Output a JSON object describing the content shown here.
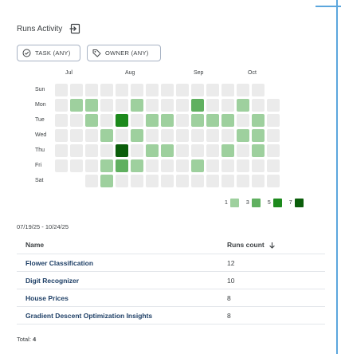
{
  "header": {
    "title": "Runs Activity",
    "expand_icon": "expand-icon"
  },
  "filters": {
    "task_label": "TASK (ANY)",
    "task_icon": "check-circle-icon",
    "owner_label": "OWNER (ANY)",
    "owner_icon": "tag-icon"
  },
  "calendar": {
    "months": [
      "Jul",
      "Aug",
      "Sep",
      "Oct"
    ],
    "days": [
      "Sun",
      "Mon",
      "Tue",
      "Wed",
      "Thu",
      "Fri",
      "Sat"
    ],
    "week_count": 15,
    "empty_color": "#ebebeb",
    "level_colors": {
      "1": "#9ed09e",
      "3": "#60b060",
      "5": "#1d8a1d",
      "7": "#0b5e0b"
    },
    "active_cells": [
      {
        "week": 1,
        "day": 1,
        "level": 1
      },
      {
        "week": 2,
        "day": 1,
        "level": 1
      },
      {
        "week": 5,
        "day": 1,
        "level": 1
      },
      {
        "week": 9,
        "day": 1,
        "level": 3
      },
      {
        "week": 12,
        "day": 1,
        "level": 1
      },
      {
        "week": 2,
        "day": 2,
        "level": 1
      },
      {
        "week": 4,
        "day": 2,
        "level": 5
      },
      {
        "week": 6,
        "day": 2,
        "level": 1
      },
      {
        "week": 7,
        "day": 2,
        "level": 1
      },
      {
        "week": 9,
        "day": 2,
        "level": 1
      },
      {
        "week": 10,
        "day": 2,
        "level": 1
      },
      {
        "week": 11,
        "day": 2,
        "level": 1
      },
      {
        "week": 13,
        "day": 2,
        "level": 1
      },
      {
        "week": 3,
        "day": 3,
        "level": 1
      },
      {
        "week": 5,
        "day": 3,
        "level": 1
      },
      {
        "week": 12,
        "day": 3,
        "level": 1
      },
      {
        "week": 13,
        "day": 3,
        "level": 1
      },
      {
        "week": 4,
        "day": 4,
        "level": 7
      },
      {
        "week": 6,
        "day": 4,
        "level": 1
      },
      {
        "week": 7,
        "day": 4,
        "level": 1
      },
      {
        "week": 11,
        "day": 4,
        "level": 1
      },
      {
        "week": 13,
        "day": 4,
        "level": 1
      },
      {
        "week": 3,
        "day": 5,
        "level": 1
      },
      {
        "week": 4,
        "day": 5,
        "level": 3
      },
      {
        "week": 5,
        "day": 5,
        "level": 1
      },
      {
        "week": 9,
        "day": 5,
        "level": 1
      },
      {
        "week": 3,
        "day": 6,
        "level": 1
      }
    ],
    "inactive_cells": [
      {
        "week": 0,
        "day": 6
      },
      {
        "week": 1,
        "day": 6
      },
      {
        "week": 14,
        "day": 0
      }
    ],
    "legend": [
      "1",
      "3",
      "5",
      "7"
    ]
  },
  "date_range": "07/19/25 - 10/24/25",
  "table": {
    "col_name": "Name",
    "col_runs": "Runs count",
    "rows": [
      {
        "name": "Flower Classification",
        "runs": "12"
      },
      {
        "name": "Digit Recognizer",
        "runs": "10"
      },
      {
        "name": "House Prices",
        "runs": "8"
      },
      {
        "name": "Gradient Descent Optimization Insights",
        "runs": "8"
      }
    ]
  },
  "total_label": "Total:",
  "total_value": "4"
}
